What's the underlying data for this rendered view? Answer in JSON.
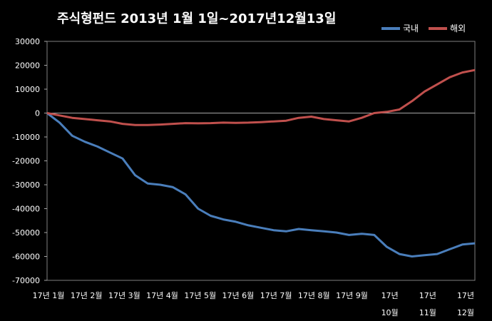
{
  "chart_data": {
    "type": "line",
    "title": "주식형펀드    2013년 1월 1일~2017년12월13일",
    "ylim": [
      -70000,
      30000
    ],
    "yticks": [
      30000,
      20000,
      10000,
      0,
      -10000,
      -20000,
      -30000,
      -40000,
      -50000,
      -60000,
      -70000
    ],
    "ytick_labels": [
      "30000",
      "20000",
      "10000",
      "0",
      "-10000",
      "-20000",
      "-30000",
      "-40000",
      "-50000",
      "-60000",
      "-70000"
    ],
    "x_labels": [
      "17년 1월",
      "17년 2월",
      "17년 3월",
      "17년 4월",
      "17년 5월",
      "17년 6월",
      "17년 7월",
      "17년 8월",
      "17년 9월",
      "17년\n10월",
      "17년\n11월",
      "17년\n12월"
    ],
    "grid": "horizontal",
    "legend_position": "top-right",
    "series": [
      {
        "name": "국내",
        "color": "#4a7ebb",
        "values": [
          0,
          -4000,
          -9500,
          -12000,
          -14000,
          -16500,
          -19000,
          -26000,
          -29500,
          -30000,
          -31000,
          -34000,
          -40000,
          -43000,
          -44500,
          -45500,
          -47000,
          -48000,
          -49000,
          -49500,
          -48500,
          -49000,
          -49500,
          -50000,
          -51000,
          -50500,
          -51000,
          -56000,
          -59000,
          -60000,
          -59500,
          -59000,
          -57000,
          -55000,
          -54500
        ]
      },
      {
        "name": "해외",
        "color": "#c0504d",
        "values": [
          0,
          -1000,
          -2000,
          -2500,
          -3000,
          -3500,
          -4500,
          -5000,
          -5000,
          -4800,
          -4500,
          -4200,
          -4300,
          -4200,
          -4000,
          -4100,
          -4000,
          -3800,
          -3500,
          -3200,
          -2000,
          -1500,
          -2500,
          -3000,
          -3500,
          -2000,
          0,
          500,
          1500,
          5000,
          9000,
          12000,
          15000,
          17000,
          18000
        ]
      }
    ]
  }
}
